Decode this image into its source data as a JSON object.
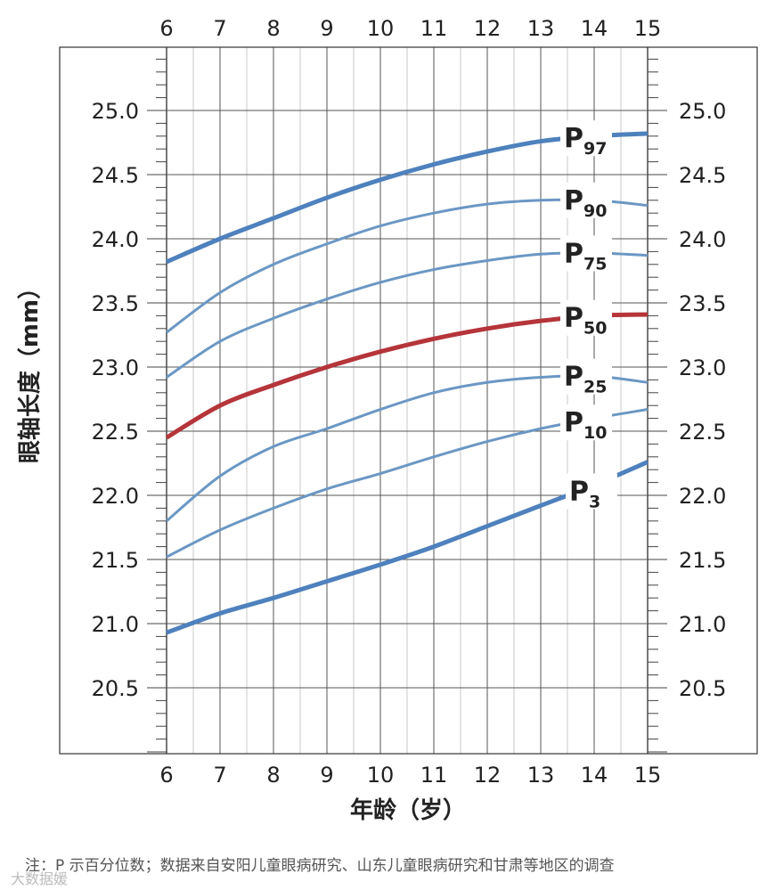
{
  "chart_data": {
    "type": "line",
    "xlabel": "年龄（岁）",
    "ylabel": "眼轴长度（mm）",
    "xlim": [
      6,
      15
    ],
    "ylim": [
      20,
      25.5
    ],
    "x_ticks": [
      6,
      7,
      8,
      9,
      10,
      11,
      12,
      13,
      14,
      15
    ],
    "y_ticks": [
      "20.5",
      "21.0",
      "21.5",
      "22.0",
      "22.5",
      "23.0",
      "23.5",
      "24.0",
      "24.5",
      "25.0"
    ],
    "grid": true,
    "series": [
      {
        "name": "P97",
        "label_main": "P",
        "label_sub": "97",
        "color": "#4e81bd",
        "bold": true,
        "x": [
          6,
          7,
          8,
          9,
          10,
          11,
          12,
          13,
          14,
          15
        ],
        "y": [
          23.82,
          24.0,
          24.16,
          24.32,
          24.46,
          24.58,
          24.68,
          24.76,
          24.8,
          24.82
        ]
      },
      {
        "name": "P90",
        "label_main": "P",
        "label_sub": "90",
        "color": "#6b97c4",
        "bold": false,
        "x": [
          6,
          7,
          8,
          9,
          10,
          11,
          12,
          13,
          14,
          15
        ],
        "y": [
          23.27,
          23.58,
          23.8,
          23.96,
          24.1,
          24.2,
          24.27,
          24.3,
          24.3,
          24.26
        ]
      },
      {
        "name": "P75",
        "label_main": "P",
        "label_sub": "75",
        "color": "#6b97c4",
        "bold": false,
        "x": [
          6,
          7,
          8,
          9,
          10,
          11,
          12,
          13,
          14,
          15
        ],
        "y": [
          22.92,
          23.2,
          23.38,
          23.53,
          23.66,
          23.76,
          23.83,
          23.88,
          23.89,
          23.87
        ]
      },
      {
        "name": "P50",
        "label_main": "P",
        "label_sub": "50",
        "color": "#b5353a",
        "bold": true,
        "x": [
          6,
          7,
          8,
          9,
          10,
          11,
          12,
          13,
          14,
          15
        ],
        "y": [
          22.45,
          22.7,
          22.86,
          23.0,
          23.12,
          23.22,
          23.3,
          23.36,
          23.4,
          23.41
        ]
      },
      {
        "name": "P25",
        "label_main": "P",
        "label_sub": "25",
        "color": "#6b97c4",
        "bold": false,
        "x": [
          6,
          7,
          8,
          9,
          10,
          11,
          12,
          13,
          14,
          15
        ],
        "y": [
          21.8,
          22.15,
          22.38,
          22.52,
          22.67,
          22.8,
          22.88,
          22.92,
          22.93,
          22.88
        ]
      },
      {
        "name": "P10",
        "label_main": "P",
        "label_sub": "10",
        "color": "#6b97c4",
        "bold": false,
        "x": [
          6,
          7,
          8,
          9,
          10,
          11,
          12,
          13,
          14,
          15
        ],
        "y": [
          21.52,
          21.73,
          21.9,
          22.05,
          22.17,
          22.3,
          22.42,
          22.52,
          22.6,
          22.67
        ]
      },
      {
        "name": "P3",
        "label_main": "P",
        "label_sub": "3",
        "color": "#4e81bd",
        "bold": true,
        "x": [
          6,
          7,
          8,
          9,
          10,
          11,
          12,
          13,
          14,
          15
        ],
        "y": [
          20.93,
          21.08,
          21.2,
          21.33,
          21.46,
          21.6,
          21.76,
          21.92,
          22.08,
          22.26
        ]
      }
    ]
  },
  "footnote": "注：P 示百分位数；数据来自安阳儿童眼病研究、山东儿童眼病研究和甘肃等地区的调查",
  "watermark": "大数据媛"
}
